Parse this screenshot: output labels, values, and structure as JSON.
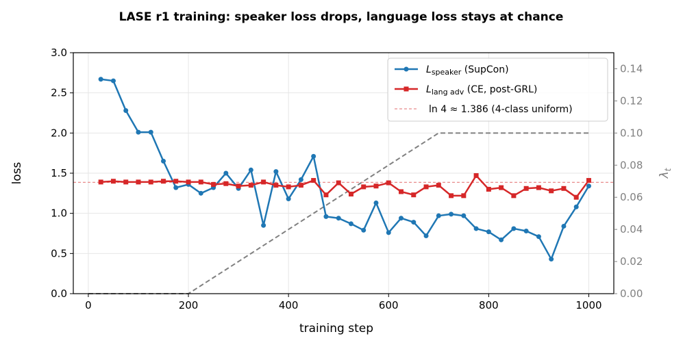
{
  "chart_data": {
    "type": "line",
    "title": "LASE r1 training: speaker loss drops, language loss stays at chance",
    "xlabel": "training step",
    "ylabel": "loss",
    "y2label": "λ",
    "y2label_sub": "t",
    "xlim": [
      -30,
      1050
    ],
    "ylim": [
      0,
      3.0
    ],
    "y2lim": [
      0,
      0.15
    ],
    "x_ticks": [
      0,
      200,
      400,
      600,
      800,
      1000
    ],
    "y_ticks": [
      0.0,
      0.5,
      1.0,
      1.5,
      2.0,
      2.5,
      3.0
    ],
    "y2_ticks": [
      0.0,
      0.02,
      0.04,
      0.06,
      0.08,
      0.1,
      0.12,
      0.14
    ],
    "x_tick_labels": [
      "0",
      "200",
      "400",
      "600",
      "800",
      "1000"
    ],
    "y_tick_labels": [
      "0.0",
      "0.5",
      "1.0",
      "1.5",
      "2.0",
      "2.5",
      "3.0"
    ],
    "y2_tick_labels": [
      "0.00",
      "0.02",
      "0.04",
      "0.06",
      "0.08",
      "0.10",
      "0.12",
      "0.14"
    ],
    "grid": true,
    "legend_placement": "top-right",
    "x": [
      25,
      50,
      75,
      100,
      125,
      150,
      175,
      200,
      225,
      250,
      275,
      300,
      325,
      350,
      375,
      400,
      425,
      450,
      475,
      500,
      525,
      550,
      575,
      600,
      625,
      650,
      675,
      700,
      725,
      750,
      775,
      800,
      825,
      850,
      875,
      900,
      925,
      950,
      975,
      1000
    ],
    "series": [
      {
        "name_main": "L",
        "name_sub": "speaker",
        "name_rest": " (SupCon)",
        "color": "#1f77b4",
        "marker": "circle",
        "values": [
          2.67,
          2.65,
          2.28,
          2.01,
          2.01,
          1.65,
          1.32,
          1.36,
          1.25,
          1.32,
          1.5,
          1.31,
          1.54,
          0.85,
          1.52,
          1.18,
          1.42,
          1.71,
          0.96,
          0.94,
          0.87,
          0.79,
          1.13,
          0.76,
          0.94,
          0.89,
          0.72,
          0.97,
          0.99,
          0.97,
          0.81,
          0.77,
          0.67,
          0.81,
          0.78,
          0.71,
          0.43,
          0.84,
          1.08,
          1.34
        ]
      },
      {
        "name_main": "L",
        "name_sub": "lang adv",
        "name_rest": " (CE, post-GRL)",
        "color": "#d62728",
        "marker": "square",
        "values": [
          1.39,
          1.4,
          1.39,
          1.39,
          1.39,
          1.4,
          1.4,
          1.39,
          1.39,
          1.36,
          1.37,
          1.34,
          1.35,
          1.39,
          1.35,
          1.33,
          1.35,
          1.41,
          1.23,
          1.38,
          1.24,
          1.33,
          1.34,
          1.38,
          1.27,
          1.23,
          1.33,
          1.35,
          1.22,
          1.22,
          1.47,
          1.3,
          1.32,
          1.22,
          1.31,
          1.32,
          1.28,
          1.31,
          1.2,
          1.41
        ]
      }
    ],
    "reference_line": {
      "label": "ln 4 ≈ 1.386 (4-class uniform)",
      "value": 1.386,
      "color": "#e8898a"
    },
    "lambda_schedule": {
      "axis": "right",
      "color": "#808080",
      "x": [
        0,
        200,
        700,
        1000
      ],
      "values": [
        0.0,
        0.0,
        0.1,
        0.1
      ]
    }
  }
}
